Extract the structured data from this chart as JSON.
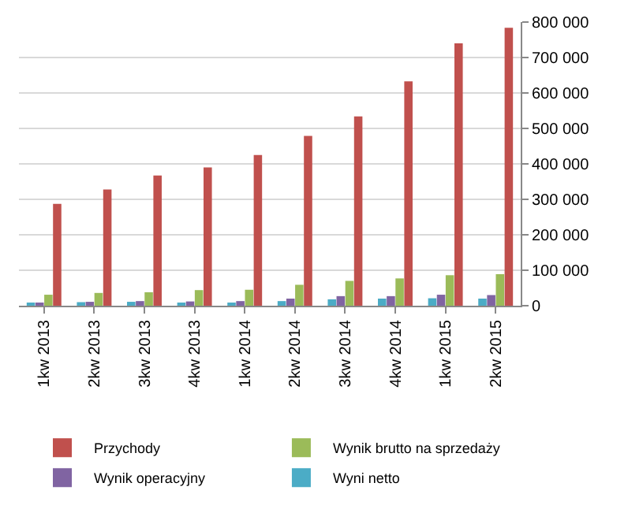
{
  "chart_data": {
    "type": "bar",
    "categories": [
      "1kw 2013",
      "2kw 2013",
      "3kw 2013",
      "4kw 2013",
      "1kw 2014",
      "2kw 2014",
      "3kw 2014",
      "4kw 2014",
      "1kw 2015",
      "2kw 2015"
    ],
    "series": [
      {
        "name": "Przychody",
        "color": "#c0504d",
        "values": [
          287000,
          328000,
          367000,
          390000,
          425000,
          479000,
          534000,
          633000,
          740000,
          784000
        ]
      },
      {
        "name": "Wynik brutto na sprzedaży",
        "color": "#9bbb59",
        "values": [
          31000,
          36000,
          38000,
          44000,
          45000,
          59000,
          70000,
          77000,
          86000,
          89000
        ]
      },
      {
        "name": "Wynik operacyjny",
        "color": "#8064a2",
        "values": [
          8000,
          11000,
          13000,
          12000,
          13000,
          20000,
          27000,
          27000,
          31000,
          30000
        ]
      },
      {
        "name": "Wyni netto",
        "color": "#4bacc6",
        "values": [
          5000,
          10000,
          11000,
          5000,
          6000,
          13000,
          18000,
          20000,
          21000,
          20000
        ]
      }
    ],
    "ylim": [
      0,
      800000
    ],
    "yticks": [
      0,
      {
        "value": 100000,
        "label": "100 000"
      },
      {
        "value": 200000,
        "label": "200 000"
      },
      {
        "value": 300000,
        "label": "300 000"
      },
      {
        "value": 400000,
        "label": "400 000"
      },
      {
        "value": 500000,
        "label": "500 000"
      },
      {
        "value": 600000,
        "label": "600 000"
      },
      {
        "value": 700000,
        "label": "700 000"
      },
      {
        "value": 800000,
        "label": "800 000"
      }
    ],
    "grid": "y",
    "legend": "bottom"
  }
}
